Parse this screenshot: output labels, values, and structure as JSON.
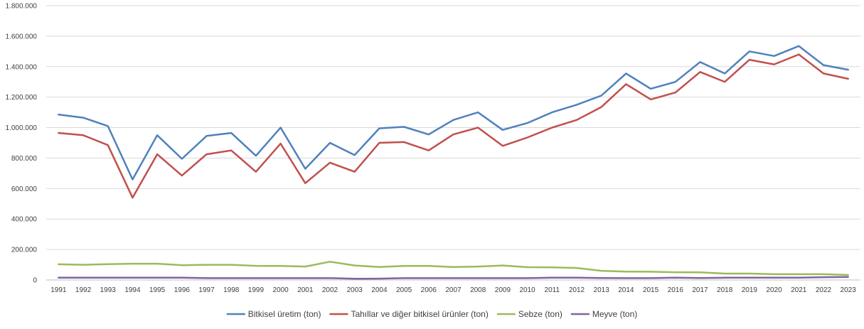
{
  "chart_data": {
    "type": "line",
    "title": "",
    "xlabel": "",
    "ylabel": "",
    "x": [
      "1991",
      "1992",
      "1993",
      "1994",
      "1995",
      "1996",
      "1997",
      "1998",
      "1999",
      "2000",
      "2001",
      "2002",
      "2003",
      "2004",
      "2005",
      "2006",
      "2007",
      "2008",
      "2009",
      "2010",
      "2011",
      "2012",
      "2013",
      "2014",
      "2015",
      "2016",
      "2017",
      "2018",
      "2019",
      "2020",
      "2021",
      "2022",
      "2023"
    ],
    "ylim": [
      0,
      1800000
    ],
    "yticks": [
      0,
      200000,
      400000,
      600000,
      800000,
      1000000,
      1200000,
      1400000,
      1600000,
      1800000
    ],
    "ytick_labels": [
      "0",
      "200.000",
      "400.000",
      "600.000",
      "800.000",
      "1.000.000",
      "1.200.000",
      "1.400.000",
      "1.600.000",
      "1.800.000"
    ],
    "grid": "horizontal",
    "legend_position": "bottom",
    "series": [
      {
        "name": "Bitkisel üretim (ton)",
        "color": "#4f81bd",
        "values": [
          1085000,
          1065000,
          1010000,
          660000,
          950000,
          795000,
          945000,
          965000,
          815000,
          1000000,
          730000,
          900000,
          820000,
          995000,
          1005000,
          955000,
          1050000,
          1100000,
          985000,
          1030000,
          1100000,
          1150000,
          1210000,
          1355000,
          1255000,
          1300000,
          1430000,
          1355000,
          1500000,
          1470000,
          1535000,
          1410000,
          1380000
        ]
      },
      {
        "name": "Tahıllar ve diğer bitkisel ürünler (ton)",
        "color": "#c0504d",
        "values": [
          965000,
          950000,
          885000,
          540000,
          825000,
          685000,
          825000,
          850000,
          710000,
          895000,
          635000,
          770000,
          710000,
          900000,
          905000,
          850000,
          955000,
          1000000,
          880000,
          935000,
          1000000,
          1050000,
          1135000,
          1285000,
          1185000,
          1230000,
          1365000,
          1300000,
          1445000,
          1415000,
          1480000,
          1355000,
          1320000
        ]
      },
      {
        "name": "Sebze (ton)",
        "color": "#9bbb59",
        "values": [
          103000,
          100000,
          104000,
          107000,
          107000,
          97000,
          100000,
          100000,
          93000,
          92000,
          88000,
          120000,
          95000,
          85000,
          92000,
          92000,
          85000,
          88000,
          95000,
          84000,
          83000,
          79000,
          60000,
          55000,
          54000,
          51000,
          50000,
          42000,
          42000,
          38000,
          38000,
          38000,
          33000
        ]
      },
      {
        "name": "Meyve (ton)",
        "color": "#8064a2",
        "values": [
          15000,
          15000,
          15000,
          15000,
          15000,
          15000,
          12000,
          12000,
          12000,
          12000,
          12000,
          12000,
          8000,
          9000,
          12000,
          12000,
          12000,
          12000,
          12000,
          12000,
          15000,
          15000,
          13000,
          12000,
          12000,
          15000,
          13000,
          15000,
          15000,
          15000,
          15000,
          18000,
          20000
        ]
      }
    ]
  }
}
